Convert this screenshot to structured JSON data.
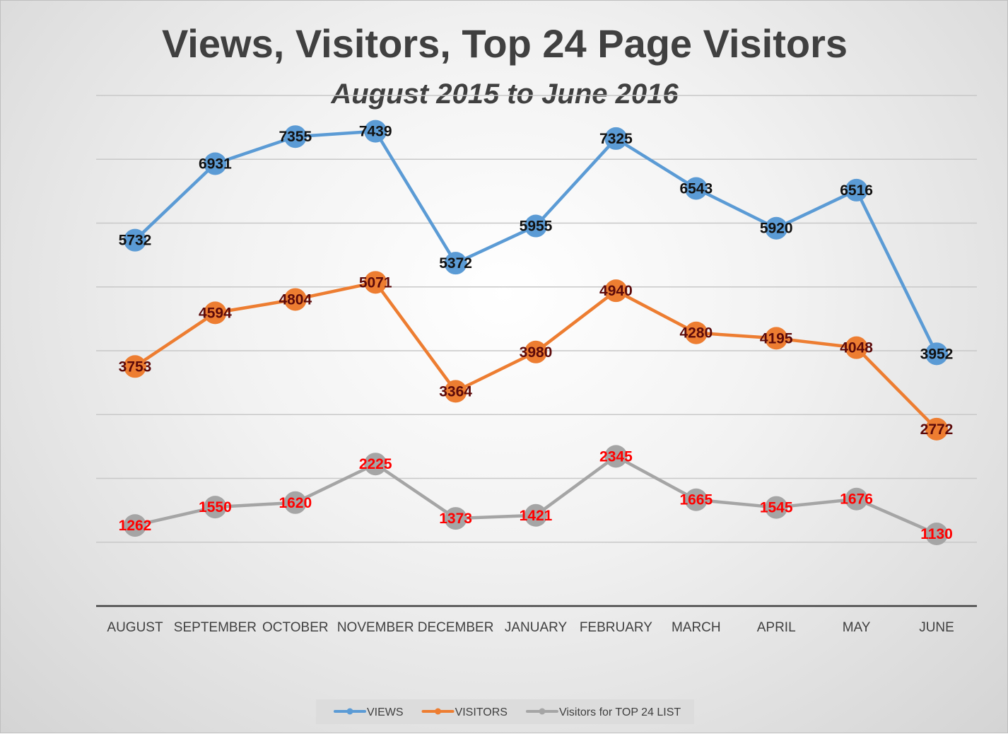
{
  "chart_data": {
    "type": "line",
    "title": "Views, Visitors, Top 24 Page Visitors",
    "subtitle": "August 2015 to June 2016",
    "categories": [
      "AUGUST",
      "SEPTEMBER",
      "OCTOBER",
      "NOVEMBER",
      "DECEMBER",
      "JANUARY",
      "FEBRUARY",
      "MARCH",
      "APRIL",
      "MAY",
      "JUNE"
    ],
    "ylim": [
      0,
      8000
    ],
    "ytick_step": 1000,
    "y_axis_labels_shown": false,
    "grid": true,
    "legend_position": "bottom",
    "series": [
      {
        "name": "VIEWS",
        "color": "#5b9bd5",
        "label_color": "#111111",
        "values": [
          5732,
          6931,
          7355,
          7439,
          5372,
          5955,
          7325,
          6543,
          5920,
          6516,
          3952
        ]
      },
      {
        "name": "VISITORS",
        "color": "#ed7d31",
        "label_color": "#5c0a0a",
        "values": [
          3753,
          4594,
          4804,
          5071,
          3364,
          3980,
          4940,
          4280,
          4195,
          4048,
          2772
        ]
      },
      {
        "name": "Visitors for TOP 24 LIST",
        "color": "#a5a5a5",
        "label_color": "#ff0000",
        "values": [
          1262,
          1550,
          1620,
          2225,
          1373,
          1421,
          2345,
          1665,
          1545,
          1676,
          1130
        ]
      }
    ]
  }
}
